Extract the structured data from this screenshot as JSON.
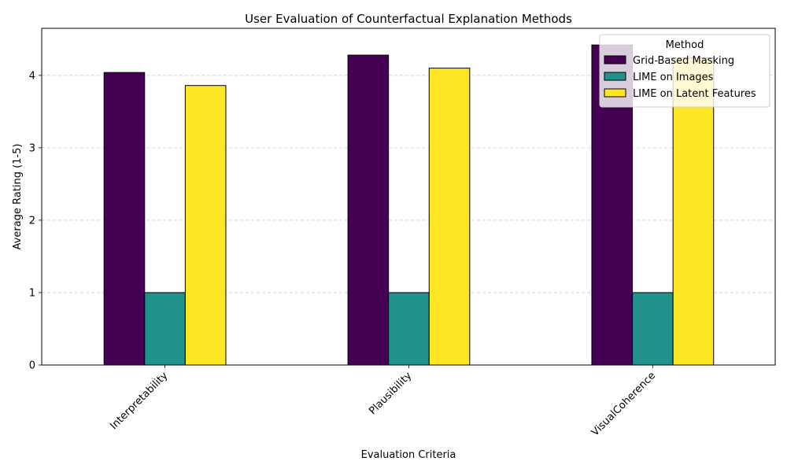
{
  "chart_data": {
    "type": "bar",
    "title": "User Evaluation of Counterfactual Explanation Methods",
    "xlabel": "Evaluation Criteria",
    "ylabel": "Average Rating (1-5)",
    "categories": [
      "Interpretability",
      "Plausibility",
      "VisualCoherence"
    ],
    "ylim": [
      0,
      4.65
    ],
    "yticks": [
      0,
      1,
      2,
      3,
      4
    ],
    "grid": "horizontal dashed",
    "legend": {
      "title": "Method",
      "placement": "top-right"
    },
    "series": [
      {
        "name": "Grid-Based Masking",
        "color": "#440154",
        "values": [
          4.04,
          4.28,
          4.42
        ]
      },
      {
        "name": "LIME on Images",
        "color": "#21918c",
        "values": [
          1.0,
          1.0,
          1.0
        ]
      },
      {
        "name": "LIME on Latent Features",
        "color": "#fde725",
        "values": [
          3.86,
          4.1,
          4.24
        ]
      }
    ]
  }
}
